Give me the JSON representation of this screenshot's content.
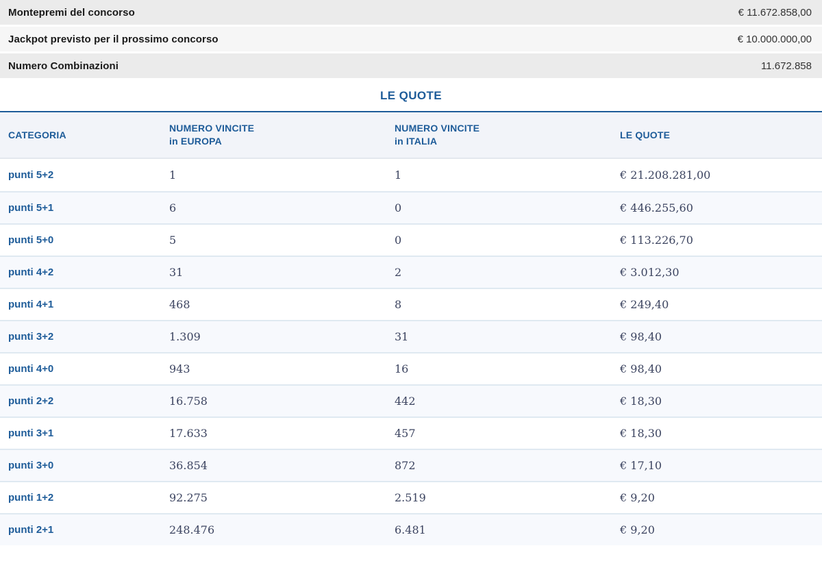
{
  "summary": {
    "rows": [
      {
        "label": "Montepremi del concorso",
        "value": "€ 11.672.858,00"
      },
      {
        "label": "Jackpot previsto per il prossimo concorso",
        "value": "€ 10.000.000,00"
      },
      {
        "label": "Numero Combinazioni",
        "value": "11.672.858"
      }
    ]
  },
  "section_title": "LE QUOTE",
  "table": {
    "headers": [
      {
        "line1": "CATEGORIA",
        "line2": ""
      },
      {
        "line1": "NUMERO VINCITE",
        "line2": "in EUROPA"
      },
      {
        "line1": "NUMERO VINCITE",
        "line2": "in ITALIA"
      },
      {
        "line1": "LE QUOTE",
        "line2": ""
      }
    ],
    "rows": [
      {
        "categoria": "punti 5+2",
        "europa": "1",
        "italia": "1",
        "quota": "€ 21.208.281,00"
      },
      {
        "categoria": "punti 5+1",
        "europa": "6",
        "italia": "0",
        "quota": "€ 446.255,60"
      },
      {
        "categoria": "punti 5+0",
        "europa": "5",
        "italia": "0",
        "quota": "€ 113.226,70"
      },
      {
        "categoria": "punti 4+2",
        "europa": "31",
        "italia": "2",
        "quota": "€ 3.012,30"
      },
      {
        "categoria": "punti 4+1",
        "europa": "468",
        "italia": "8",
        "quota": "€ 249,40"
      },
      {
        "categoria": "punti 3+2",
        "europa": "1.309",
        "italia": "31",
        "quota": "€ 98,40"
      },
      {
        "categoria": "punti 4+0",
        "europa": "943",
        "italia": "16",
        "quota": "€ 98,40"
      },
      {
        "categoria": "punti 2+2",
        "europa": "16.758",
        "italia": "442",
        "quota": "€ 18,30"
      },
      {
        "categoria": "punti 3+1",
        "europa": "17.633",
        "italia": "457",
        "quota": "€ 18,30"
      },
      {
        "categoria": "punti 3+0",
        "europa": "36.854",
        "italia": "872",
        "quota": "€ 17,10"
      },
      {
        "categoria": "punti 1+2",
        "europa": "92.275",
        "italia": "2.519",
        "quota": "€ 9,20"
      },
      {
        "categoria": "punti 2+1",
        "europa": "248.476",
        "italia": "6.481",
        "quota": "€ 9,20"
      }
    ]
  },
  "colors": {
    "accent": "#1e5c99",
    "bar_bg_dark": "#ebebeb",
    "bar_bg_light": "#f6f6f6",
    "bar_label": "#1a1a1a",
    "bar_value": "#333333",
    "header_bg": "#f2f4f9",
    "row_tint": "#f7f9fd",
    "separator": "#dfe9f1",
    "value_text": "#3c4460"
  }
}
